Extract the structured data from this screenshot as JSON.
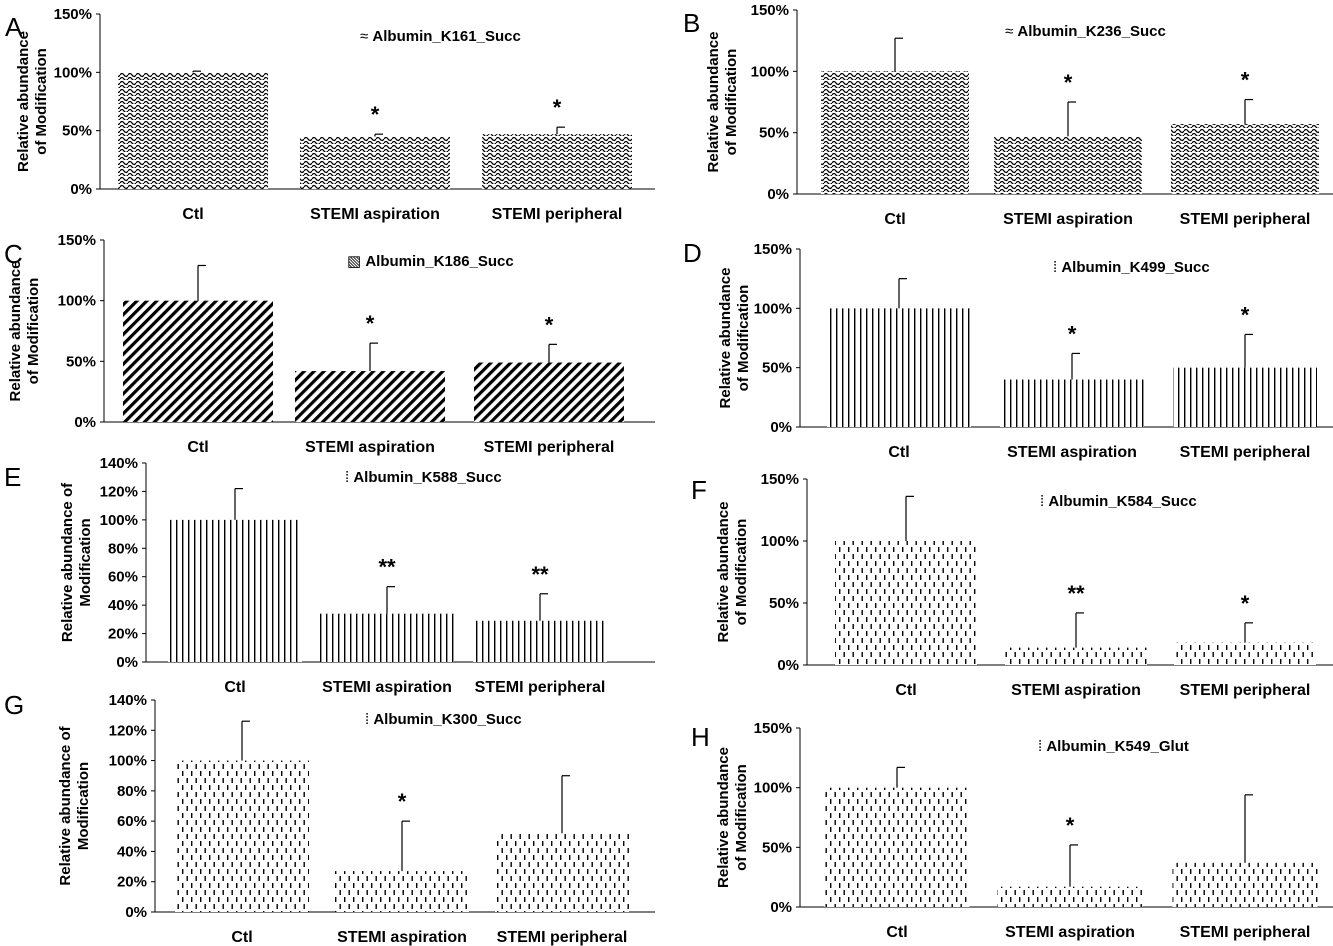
{
  "chart_data": [
    {
      "panel": "A",
      "type": "bar",
      "legend": "Albumin_K161_Succ",
      "legend_glyph": "≈",
      "pattern": "wave",
      "ylabel_lines": [
        "Relative abundance",
        "of Modification"
      ],
      "categories": [
        "Ctl",
        "STEMI aspiration",
        "STEMI peripheral"
      ],
      "values": [
        100,
        45,
        47
      ],
      "errors": [
        1,
        2,
        6
      ],
      "significance": [
        "",
        "*",
        "*"
      ],
      "yticks": [
        "0%",
        "50%",
        "100%",
        "150%"
      ],
      "ylim": [
        0,
        150
      ]
    },
    {
      "panel": "B",
      "type": "bar",
      "legend": "Albumin_K236_Succ",
      "legend_glyph": "≈",
      "pattern": "wave",
      "ylabel_lines": [
        "Relative abundance",
        "of Modification"
      ],
      "categories": [
        "Ctl",
        "STEMI aspiration",
        "STEMI peripheral"
      ],
      "values": [
        100,
        47,
        57
      ],
      "errors": [
        27,
        28,
        20
      ],
      "significance": [
        "",
        "*",
        "*"
      ],
      "yticks": [
        "0%",
        "50%",
        "100%",
        "150%"
      ],
      "ylim": [
        0,
        150
      ]
    },
    {
      "panel": "C",
      "type": "bar",
      "legend": "Albumin_K186_Succ",
      "legend_glyph": "▧",
      "pattern": "diag",
      "ylabel_lines": [
        "Relative abundance",
        "of Modification"
      ],
      "categories": [
        "Ctl",
        "STEMI aspiration",
        "STEMI peripheral"
      ],
      "values": [
        100,
        42,
        49
      ],
      "errors": [
        29,
        23,
        15
      ],
      "significance": [
        "",
        "*",
        "*"
      ],
      "yticks": [
        "0%",
        "50%",
        "100%",
        "150%"
      ],
      "ylim": [
        0,
        150
      ]
    },
    {
      "panel": "D",
      "type": "bar",
      "legend": "Albumin_K499_Succ",
      "legend_glyph": "⁞",
      "pattern": "vline",
      "ylabel_lines": [
        "Relative abundance",
        "of Modification"
      ],
      "categories": [
        "Ctl",
        "STEMI aspiration",
        "STEMI peripheral"
      ],
      "values": [
        100,
        40,
        50
      ],
      "errors": [
        25,
        22,
        28
      ],
      "significance": [
        "",
        "*",
        "*"
      ],
      "yticks": [
        "0%",
        "50%",
        "100%",
        "150%"
      ],
      "ylim": [
        0,
        150
      ]
    },
    {
      "panel": "E",
      "type": "bar",
      "legend": "Albumin_K588_Succ",
      "legend_glyph": "⁞",
      "pattern": "vline",
      "ylabel_lines": [
        "Relative abundance of",
        "Modification"
      ],
      "categories": [
        "Ctl",
        "STEMI aspiration",
        "STEMI peripheral"
      ],
      "values": [
        100,
        34,
        29
      ],
      "errors": [
        22,
        19,
        19
      ],
      "significance": [
        "",
        "**",
        "**"
      ],
      "yticks": [
        "0%",
        "20%",
        "40%",
        "60%",
        "80%",
        "100%",
        "120%",
        "140%"
      ],
      "ylim": [
        0,
        140
      ]
    },
    {
      "panel": "F",
      "type": "bar",
      "legend": "Albumin_K584_Succ",
      "legend_glyph": "⁞",
      "pattern": "dash",
      "ylabel_lines": [
        "Relative abundance",
        "of Modification"
      ],
      "categories": [
        "Ctl",
        "STEMI aspiration",
        "STEMI peripheral"
      ],
      "values": [
        100,
        14,
        18
      ],
      "errors": [
        36,
        28,
        16
      ],
      "significance": [
        "",
        "**",
        "*"
      ],
      "yticks": [
        "0%",
        "50%",
        "100%",
        "150%"
      ],
      "ylim": [
        0,
        150
      ]
    },
    {
      "panel": "G",
      "type": "bar",
      "legend": "Albumin_K300_Succ",
      "legend_glyph": "⁞",
      "pattern": "dash",
      "ylabel_lines": [
        "Relative abundance of",
        "Modification"
      ],
      "categories": [
        "Ctl",
        "STEMI aspiration",
        "STEMI peripheral"
      ],
      "values": [
        100,
        27,
        52
      ],
      "errors": [
        26,
        33,
        38
      ],
      "significance": [
        "",
        "*",
        ""
      ],
      "yticks": [
        "0%",
        "20%",
        "40%",
        "60%",
        "80%",
        "100%",
        "120%",
        "140%"
      ],
      "ylim": [
        0,
        140
      ]
    },
    {
      "panel": "H",
      "type": "bar",
      "legend": "Albumin_K549_Glut",
      "legend_glyph": "⁞",
      "pattern": "dash",
      "ylabel_lines": [
        "Relative abundance",
        "of Modification"
      ],
      "categories": [
        "Ctl",
        "STEMI aspiration",
        "STEMI peripheral"
      ],
      "values": [
        100,
        17,
        37
      ],
      "errors": [
        17,
        35,
        57
      ],
      "significance": [
        "",
        "*",
        ""
      ],
      "yticks": [
        "0%",
        "50%",
        "100%",
        "150%"
      ],
      "ylim": [
        0,
        150
      ]
    }
  ]
}
